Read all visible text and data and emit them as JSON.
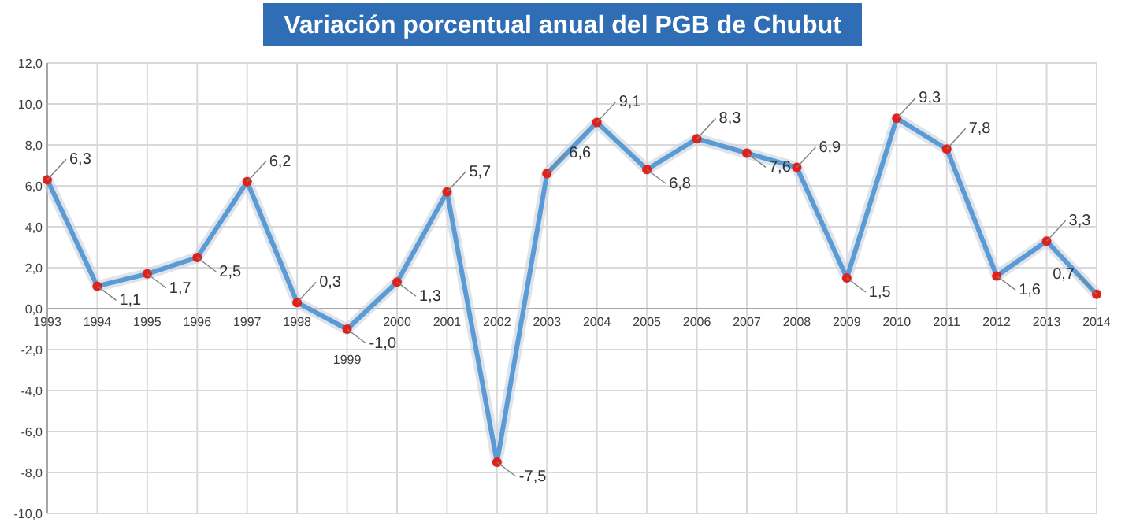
{
  "chart_data": {
    "type": "line",
    "title": "Variación porcentual anual del PGB de Chubut",
    "categories": [
      "1993",
      "1994",
      "1995",
      "1996",
      "1997",
      "1998",
      "1999",
      "2000",
      "2001",
      "2002",
      "2003",
      "2004",
      "2005",
      "2006",
      "2007",
      "2008",
      "2009",
      "2010",
      "2011",
      "2012",
      "2013",
      "2014"
    ],
    "series": [
      {
        "color": "#5b9bd5",
        "values": [
          6.3,
          1.1,
          1.7,
          2.5,
          6.2,
          0.3,
          -1.0,
          1.3,
          5.7,
          -7.5,
          6.6,
          9.1,
          6.8,
          8.3,
          7.6,
          6.9,
          1.5,
          9.3,
          7.8,
          1.6,
          3.3,
          0.7
        ],
        "value_labels": [
          "6,3",
          "1,1",
          "1,7",
          "2,5",
          "6,2",
          "0,3",
          "-1,0",
          "1,3",
          "5,7",
          "-7,5",
          "6,6",
          "9,1",
          "6,8",
          "8,3",
          "7,6",
          "6,9",
          "1,5",
          "9,3",
          "7,8",
          "1,6",
          "3,3",
          "0,7"
        ]
      }
    ],
    "ylim": [
      -10,
      12
    ],
    "yticks": [
      {
        "value": -10,
        "label": "-10,0"
      },
      {
        "value": -8,
        "label": "-8,0"
      },
      {
        "value": -6,
        "label": "-6,0"
      },
      {
        "value": -4,
        "label": "-4,0"
      },
      {
        "value": -2,
        "label": "-2,0"
      },
      {
        "value": 0,
        "label": "0,0"
      },
      {
        "value": 2,
        "label": "2,0"
      },
      {
        "value": 4,
        "label": "4,0"
      },
      {
        "value": 6,
        "label": "6,0"
      },
      {
        "value": 8,
        "label": "8,0"
      },
      {
        "value": 10,
        "label": "10,0"
      },
      {
        "value": 12,
        "label": "12,0"
      }
    ],
    "grid": true,
    "marker": "circle",
    "line_style": "solid"
  }
}
